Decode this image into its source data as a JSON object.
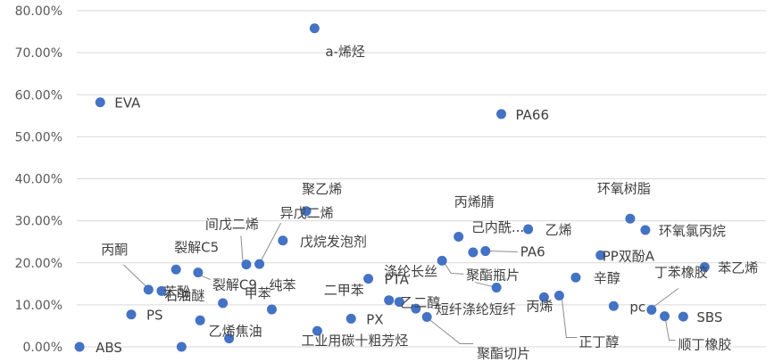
{
  "chart_data": {
    "type": "scatter",
    "title": "",
    "xlabel": "",
    "ylabel": "",
    "ylim": [
      0,
      0.8
    ],
    "xlim": [
      0,
      100
    ],
    "y_ticks": [
      "0.00%",
      "10.00%",
      "20.00%",
      "30.00%",
      "40.00%",
      "50.00%",
      "60.00%",
      "70.00%",
      "80.00%"
    ],
    "y_tick_values": [
      0,
      0.1,
      0.2,
      0.3,
      0.4,
      0.5,
      0.6,
      0.7,
      0.8
    ],
    "grid": true,
    "legend": "none",
    "marker_color": "#4472c4",
    "points": [
      {
        "label": "a-烯烃",
        "x": 34.5,
        "y": 0.758
      },
      {
        "label": "EVA",
        "x": 3.4,
        "y": 0.582
      },
      {
        "label": "PA66",
        "x": 61.6,
        "y": 0.554
      },
      {
        "label": "聚乙烯",
        "x": 33.3,
        "y": 0.323
      },
      {
        "label": "环氧树脂",
        "x": 80.3,
        "y": 0.305
      },
      {
        "label": "丙烯腈",
        "x": 55.4,
        "y": 0.262
      },
      {
        "label": "己内酰...",
        "x": 57.5,
        "y": 0.225
      },
      {
        "label": "乙烯",
        "x": 65.5,
        "y": 0.28
      },
      {
        "label": "环氧氯丙烷",
        "x": 82.5,
        "y": 0.278
      },
      {
        "label": "戊烷发泡剂",
        "x": 29.9,
        "y": 0.253
      },
      {
        "label": "PA6",
        "x": 59.3,
        "y": 0.228
      },
      {
        "label": "PP双酚A",
        "x": 76.0,
        "y": 0.218
      },
      {
        "label": "苯乙烯",
        "x": 91.1,
        "y": 0.19
      },
      {
        "label": "聚酯瓶片",
        "x": 53.0,
        "y": 0.205
      },
      {
        "label": "PTA",
        "x": 42.3,
        "y": 0.162
      },
      {
        "label": "辛醇",
        "x": 72.4,
        "y": 0.165
      },
      {
        "label": "间戊二烯",
        "x": 24.6,
        "y": 0.196
      },
      {
        "label": "异戊二烯",
        "x": 26.5,
        "y": 0.197
      },
      {
        "label": "裂解C5",
        "x": 14.4,
        "y": 0.184
      },
      {
        "label": "裂解C9",
        "x": 17.6,
        "y": 0.177
      },
      {
        "label": "丙酮",
        "x": 10.4,
        "y": 0.136
      },
      {
        "label": "苯酚",
        "x": 12.3,
        "y": 0.133
      },
      {
        "label": "涤纶长丝",
        "x": 60.9,
        "y": 0.141
      },
      {
        "label": "丙烯",
        "x": 67.8,
        "y": 0.118
      },
      {
        "label": "乙二醇",
        "x": 46.8,
        "y": 0.107
      },
      {
        "label": "二甲苯",
        "x": 45.3,
        "y": 0.111
      },
      {
        "label": "甲苯",
        "x": 21.2,
        "y": 0.104
      },
      {
        "label": "纯苯",
        "x": 28.3,
        "y": 0.089
      },
      {
        "label": "短纤涤纶短纤",
        "x": 49.2,
        "y": 0.091
      },
      {
        "label": "石油醚",
        "x": 17.9,
        "y": 0.063
      },
      {
        "label": "PS",
        "x": 7.9,
        "y": 0.077
      },
      {
        "label": "pc",
        "x": 77.9,
        "y": 0.097
      },
      {
        "label": "丁苯橡胶",
        "x": 83.4,
        "y": 0.088
      },
      {
        "label": "SBS",
        "x": 88.0,
        "y": 0.072
      },
      {
        "label": "聚酯切片",
        "x": 50.8,
        "y": 0.071
      },
      {
        "label": "PX",
        "x": 39.8,
        "y": 0.067
      },
      {
        "label": "正丁醇",
        "x": 70.0,
        "y": 0.122
      },
      {
        "label": "顺丁橡胶",
        "x": 85.3,
        "y": 0.073
      },
      {
        "label": "乙烯焦油",
        "x": 22.1,
        "y": 0.02
      },
      {
        "label": "工业用碳十粗芳烃",
        "x": 34.9,
        "y": 0.038
      },
      {
        "label": "ABS",
        "x": 0.4,
        "y": 0.0
      },
      {
        "label": "(unlabeled)",
        "x": 15.2,
        "y": 0.0
      }
    ]
  }
}
